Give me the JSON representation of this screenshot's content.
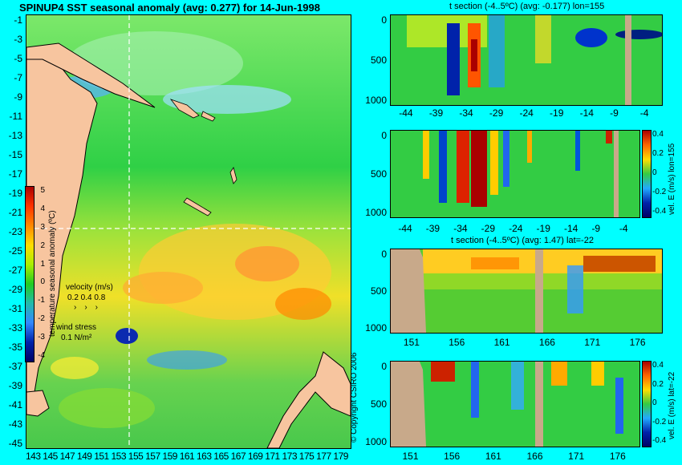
{
  "map": {
    "title": "SPINUP4 SST seasonal anomaly (avg: 0.277) for 14-Jun-1998",
    "lat_labels": [
      "-1",
      "-3",
      "-5",
      "-7",
      "-9",
      "-11",
      "-13",
      "-15",
      "-17",
      "-19",
      "-21",
      "-23",
      "-25",
      "-27",
      "-29",
      "-31",
      "-33",
      "-35",
      "-37",
      "-39",
      "-41",
      "-43",
      "-45"
    ],
    "lon_labels": [
      "143",
      "145",
      "147",
      "149",
      "151",
      "153",
      "155",
      "157",
      "159",
      "161",
      "163",
      "165",
      "167",
      "169",
      "171",
      "173",
      "175",
      "177",
      "179"
    ],
    "colorbar": {
      "label": "temperature seasonal anomaly (ºC)",
      "ticks": [
        "5",
        "4",
        "3",
        "2",
        "1",
        "0",
        "-1",
        "-2",
        "-3",
        "-4"
      ]
    },
    "velocity_legend": {
      "title": "velocity (m/s)",
      "values": "0.2 0.4 0.8"
    },
    "wind_legend": {
      "title": "wind stress",
      "value": "0.1 N/m²"
    },
    "copyright": "© Copyright CSIRO 2006"
  },
  "panels": {
    "p1": {
      "title": "t section (-4..5ºC) (avg: -0.177) lon=155",
      "x_ticks": [
        "-44",
        "-39",
        "-34",
        "-29",
        "-24",
        "-19",
        "-14",
        "-9",
        "-4"
      ],
      "y_ticks": [
        "0",
        "500",
        "1000"
      ]
    },
    "p2": {
      "x_ticks": [
        "-44",
        "-39",
        "-34",
        "-29",
        "-24",
        "-19",
        "-14",
        "-9",
        "-4"
      ],
      "y_ticks": [
        "0",
        "500",
        "1000"
      ],
      "cb_label": "vel. E (m/s) lon=155",
      "cb_ticks": [
        "0.4",
        "0.2",
        "0",
        "-0.2",
        "-0.4"
      ]
    },
    "p3": {
      "title": "t section (-4..5ºC) (avg: 1.47) lat=-22",
      "x_ticks": [
        "151",
        "156",
        "161",
        "166",
        "171",
        "176"
      ],
      "y_ticks": [
        "0",
        "500",
        "1000"
      ]
    },
    "p4": {
      "x_ticks": [
        "151",
        "156",
        "161",
        "166",
        "171",
        "176"
      ],
      "y_ticks": [
        "0",
        "500",
        "1000"
      ],
      "cb_label": "vel. E (m/s) lat=-22",
      "cb_ticks": [
        "0.4",
        "0.2",
        "0",
        "-0.2",
        "-0.4"
      ]
    }
  },
  "colors": {
    "background": "#00ffff",
    "land": "#f7c59f",
    "section_land": "#c8a98a",
    "warm": "#ff8800",
    "cold": "#0033cc",
    "neutral": "#22cc22"
  }
}
